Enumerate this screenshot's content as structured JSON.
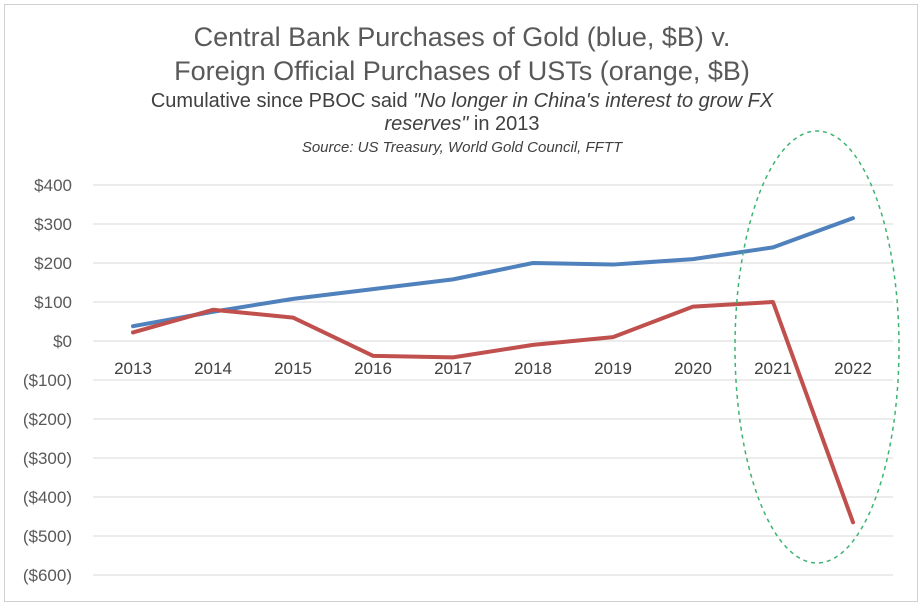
{
  "chart_data": {
    "type": "line",
    "title_line1": "Central Bank Purchases of Gold (blue, $B) v.",
    "title_line2": "Foreign Official Purchases of USTs (orange, $B)",
    "subtitle": {
      "part1": "Cumulative since PBOC said ",
      "quote_a": "\"No longer in China's interest to grow FX",
      "quote_b": "reserves\"",
      "part2": " in 2013"
    },
    "source": "Source: US Treasury, World Gold Council, FFTT",
    "categories": [
      "2013",
      "2014",
      "2015",
      "2016",
      "2017",
      "2018",
      "2019",
      "2020",
      "2021",
      "2022"
    ],
    "series": [
      {
        "color": "#4f81bd",
        "values": [
          38,
          75,
          108,
          133,
          158,
          200,
          196,
          210,
          240,
          315
        ]
      },
      {
        "color": "#c0504d",
        "values": [
          22,
          80,
          60,
          -38,
          -42,
          -10,
          10,
          88,
          100,
          -465
        ]
      }
    ],
    "y_ticks": [
      {
        "value": 400,
        "label": "$400"
      },
      {
        "value": 300,
        "label": "$300"
      },
      {
        "value": 200,
        "label": "$200"
      },
      {
        "value": 100,
        "label": "$100"
      },
      {
        "value": 0,
        "label": "$0"
      },
      {
        "value": -100,
        "label": "($100)"
      },
      {
        "value": -200,
        "label": "($200)"
      },
      {
        "value": -300,
        "label": "($300)"
      },
      {
        "value": -400,
        "label": "($400)"
      },
      {
        "value": -500,
        "label": "($500)"
      },
      {
        "value": -600,
        "label": "($600)"
      }
    ],
    "ylim": [
      -600,
      400
    ],
    "grid": true,
    "annotation": {
      "shape": "dashed-ellipse",
      "color": "#3cb371",
      "highlights": [
        "2021",
        "2022"
      ]
    }
  }
}
